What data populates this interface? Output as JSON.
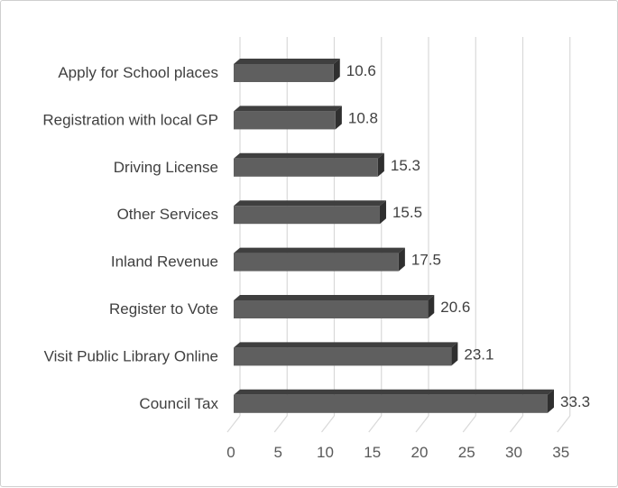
{
  "chart_data": {
    "type": "bar",
    "orientation": "horizontal",
    "style": "3d",
    "categories": [
      "Apply for School places",
      "Registration with local GP",
      "Driving License",
      "Other Services",
      "Inland Revenue",
      "Register to Vote",
      "Visit Public Library Online",
      "Council Tax"
    ],
    "values": [
      10.6,
      10.8,
      15.3,
      15.5,
      17.5,
      20.6,
      23.1,
      33.3
    ],
    "xlim": [
      0,
      35
    ],
    "xticks": [
      "0",
      "5",
      "10",
      "15",
      "20",
      "25",
      "30",
      "35"
    ],
    "grid": true,
    "legend": "none",
    "colors": {
      "bar_front": "#5f5f5f",
      "bar_top": "#3f3f3f",
      "bar_side": "#2f2f2f",
      "grid": "#d9d9d9"
    }
  }
}
